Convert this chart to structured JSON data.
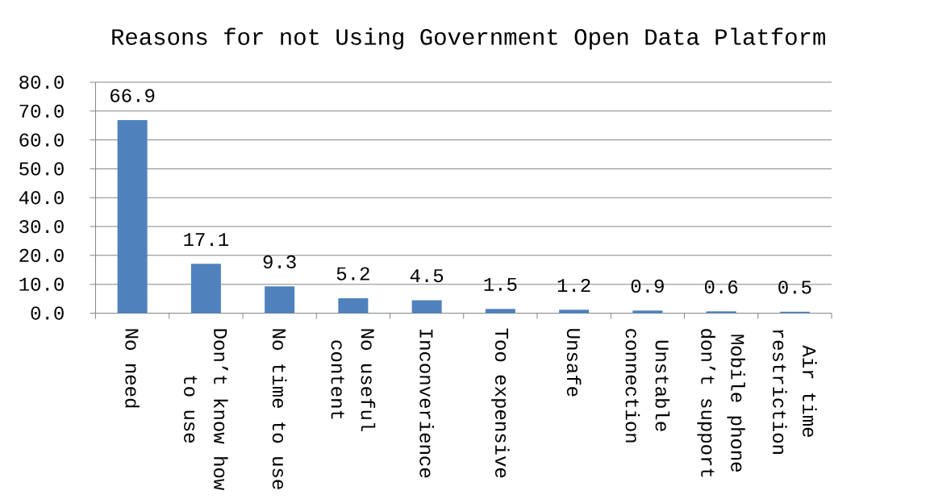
{
  "chart_data": {
    "type": "bar",
    "title": "Reasons for not Using Government Open Data Platform",
    "categories": [
      "No need",
      "Don’t know how to use",
      "No time to use",
      "No useful content",
      "Inconverience",
      "Too expensive",
      "Unsafe",
      "Unstable connection",
      "Mobile phone don’t support",
      "Air time restriction"
    ],
    "values": [
      66.9,
      17.1,
      9.3,
      5.2,
      4.5,
      1.5,
      1.2,
      0.9,
      0.6,
      0.5
    ],
    "color": "#4f81bd",
    "ylim": [
      0,
      80
    ],
    "yticks": [
      {
        "value": 0,
        "label": "0.0"
      },
      {
        "value": 10,
        "label": "10.0"
      },
      {
        "value": 20,
        "label": "20.0"
      },
      {
        "value": 30,
        "label": "30.0"
      },
      {
        "value": 40,
        "label": "40.0"
      },
      {
        "value": 50,
        "label": "50.0"
      },
      {
        "value": 60,
        "label": "60.0"
      },
      {
        "value": 70,
        "label": "70.0"
      },
      {
        "value": 80,
        "label": "80.0"
      }
    ],
    "grid": "y",
    "data_labels": true
  }
}
